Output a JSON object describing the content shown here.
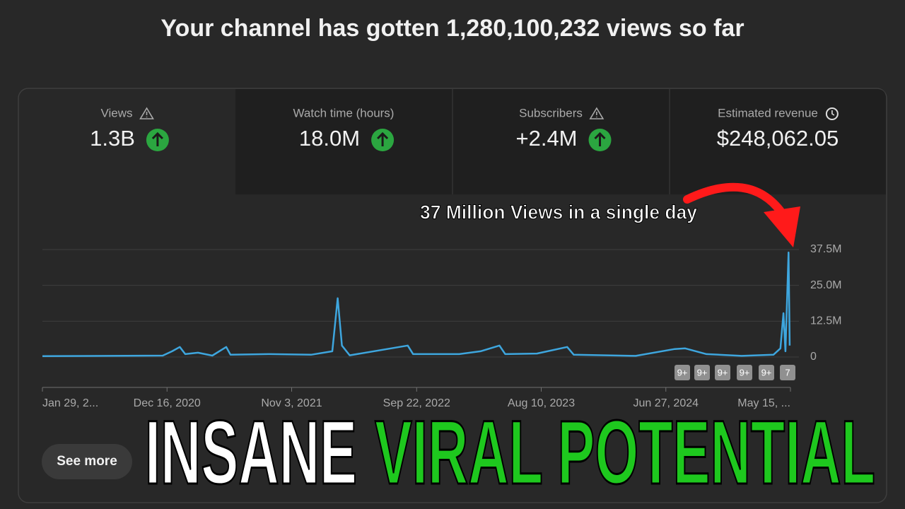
{
  "header": {
    "title": "Your channel has gotten 1,280,100,232 views so far"
  },
  "metrics": [
    {
      "label": "Views",
      "value": "1.3B"
    },
    {
      "label": "Watch time (hours)",
      "value": "18.0M"
    },
    {
      "label": "Subscribers",
      "value": "+2.4M"
    },
    {
      "label": "Estimated revenue",
      "value": "$248,062.05"
    }
  ],
  "chart_data": {
    "type": "line",
    "annotation": "37 Million Views in a single day",
    "color": "#3ea6de",
    "x": [
      "2020-01-29",
      "2020-12-05",
      "2020-12-29",
      "2021-01-18",
      "2021-02-01",
      "2021-03-06",
      "2021-04-12",
      "2021-05-18",
      "2021-05-29",
      "2021-09-05",
      "2021-12-23",
      "2022-02-16",
      "2022-03-02",
      "2022-03-13",
      "2022-04-02",
      "2022-08-30",
      "2022-09-13",
      "2023-01-10",
      "2023-03-06",
      "2023-04-24",
      "2023-05-09",
      "2023-07-30",
      "2023-10-16",
      "2023-11-02",
      "2024-04-10",
      "2024-07-20",
      "2024-08-16",
      "2024-10-10",
      "2025-01-09",
      "2025-04-01",
      "2025-04-19",
      "2025-04-27",
      "2025-05-02",
      "2025-05-10",
      "2025-05-13"
    ],
    "values": [
      300000,
      500000,
      2000000,
      3500000,
      1000000,
      1500000,
      500000,
      3500000,
      800000,
      1000000,
      800000,
      2000000,
      20500000,
      4000000,
      600000,
      4000000,
      1000000,
      1000000,
      2000000,
      4000000,
      1000000,
      1200000,
      3500000,
      800000,
      400000,
      2800000,
      3000000,
      1000000,
      400000,
      800000,
      3000000,
      15300000,
      2000000,
      36500000,
      4000000
    ],
    "xlim": [
      "2020-01-29",
      "2025-05-15"
    ],
    "xticks": [
      {
        "value": "2020-01-29",
        "label": "Jan 29, 2..."
      },
      {
        "value": "2020-12-16",
        "label": "Dec 16, 2020"
      },
      {
        "value": "2021-11-03",
        "label": "Nov 3, 2021"
      },
      {
        "value": "2022-09-22",
        "label": "Sep 22, 2022"
      },
      {
        "value": "2023-08-10",
        "label": "Aug 10, 2023"
      },
      {
        "value": "2024-06-27",
        "label": "Jun 27, 2024"
      },
      {
        "value": "2025-05-15",
        "label": "May 15, ..."
      }
    ],
    "ylim": [
      0,
      37500000
    ],
    "yticks": [
      0,
      {
        "value": 12500000,
        "label": "12.5M"
      },
      {
        "value": 25000000,
        "label": "25.0M"
      },
      {
        "value": 37500000,
        "label": "37.5M"
      }
    ],
    "grid": true
  },
  "badges": [
    "9+",
    "9+",
    "9+",
    "9+",
    "9+",
    "7"
  ],
  "button": "See more",
  "overlay": {
    "white": "INSANE",
    "green": "VIRAL POTENTIAL"
  }
}
